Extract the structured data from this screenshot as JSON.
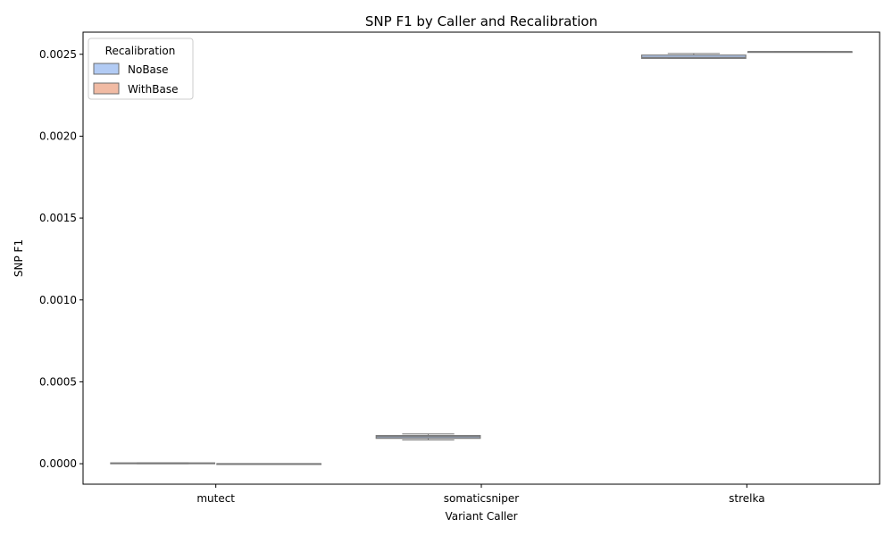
{
  "chart_data": {
    "type": "box",
    "title": "SNP F1 by Caller and Recalibration",
    "xlabel": "Variant Caller",
    "ylabel": "SNP F1",
    "categories": [
      "mutect",
      "somaticsniper",
      "strelka"
    ],
    "ylim": [
      -0.000125,
      0.002635
    ],
    "yticks": [
      0.0,
      0.0005,
      0.001,
      0.0015,
      0.002,
      0.0025
    ],
    "ytick_labels": [
      "0.0000",
      "0.0005",
      "0.0010",
      "0.0015",
      "0.0020",
      "0.0025"
    ],
    "grid": false,
    "legend": {
      "title": "Recalibration",
      "placement": "top-left"
    },
    "series": [
      {
        "name": "NoBase",
        "color": "#b2cbf4",
        "boxes": [
          {
            "category": "mutect",
            "min": 0.0,
            "q1": 0.0,
            "median": 2e-06,
            "q3": 5e-06,
            "max": 6e-06
          },
          {
            "category": "somaticsniper",
            "min": 0.000145,
            "q1": 0.000155,
            "median": 0.000165,
            "q3": 0.000172,
            "max": 0.000182
          },
          {
            "category": "strelka",
            "min": 0.002475,
            "q1": 0.002475,
            "median": 0.00248,
            "q3": 0.002495,
            "max": 0.002505
          }
        ]
      },
      {
        "name": "WithBase",
        "color": "#f1bba4",
        "boxes": [
          {
            "category": "mutect",
            "min": 0.0,
            "q1": 0.0,
            "median": 0.0,
            "q3": 0.0,
            "max": 0.0
          },
          {
            "category": "somaticsniper",
            "min": null,
            "q1": null,
            "median": null,
            "q3": null,
            "max": null
          },
          {
            "category": "strelka",
            "min": 0.002516,
            "q1": 0.002516,
            "median": 0.002516,
            "q3": 0.002516,
            "max": 0.002516
          }
        ]
      }
    ]
  }
}
